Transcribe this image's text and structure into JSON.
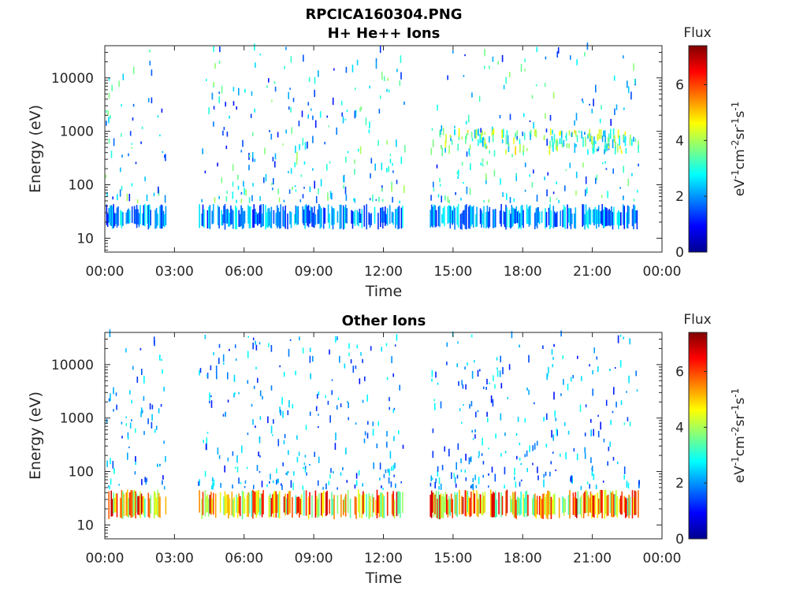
{
  "figure": {
    "title": "RPCICA160304.PNG"
  },
  "colorbar": {
    "title": "Flux",
    "label": "eV-1cm-2sr-1s-1",
    "ticks": [
      0,
      2,
      4,
      6
    ],
    "range": [
      0,
      7.4
    ]
  },
  "chart_data": [
    {
      "type": "heatmap",
      "title": "H+ He++ Ions",
      "xlabel": "Time",
      "ylabel": "Energy (eV)",
      "x_ticks": [
        "00:00",
        "03:00",
        "06:00",
        "09:00",
        "12:00",
        "15:00",
        "18:00",
        "21:00",
        "00:00"
      ],
      "x_range_hours": [
        0,
        24
      ],
      "y_scale": "log",
      "y_ticks": [
        10,
        100,
        1000,
        10000
      ],
      "y_range": [
        5.5,
        40000
      ],
      "grid": false,
      "data_gaps_hours": [
        [
          2.6,
          4.0
        ],
        [
          12.9,
          14.0
        ],
        [
          23.0,
          24.0
        ]
      ],
      "low_energy_band_eV": [
        17,
        40
      ],
      "low_energy_band_flux": [
        1,
        3
      ],
      "upper_scatter_flux": [
        1,
        4
      ],
      "peak_region": {
        "hours": [
          14.0,
          23.0
        ],
        "energy_eV": [
          400,
          1000
        ],
        "flux": [
          2,
          5
        ]
      }
    },
    {
      "type": "heatmap",
      "title": "Other Ions",
      "xlabel": "Time",
      "ylabel": "Energy (eV)",
      "x_ticks": [
        "00:00",
        "03:00",
        "06:00",
        "09:00",
        "12:00",
        "15:00",
        "18:00",
        "21:00",
        "00:00"
      ],
      "x_range_hours": [
        0,
        24
      ],
      "y_scale": "log",
      "y_ticks": [
        10,
        100,
        1000,
        10000
      ],
      "y_range": [
        5.5,
        40000
      ],
      "grid": false,
      "data_gaps_hours": [
        [
          2.6,
          4.0
        ],
        [
          12.9,
          14.0
        ],
        [
          23.0,
          24.0
        ]
      ],
      "low_energy_band_eV": [
        15,
        42
      ],
      "low_energy_band_flux": [
        3,
        7
      ],
      "upper_scatter_flux": [
        1,
        3
      ]
    }
  ]
}
